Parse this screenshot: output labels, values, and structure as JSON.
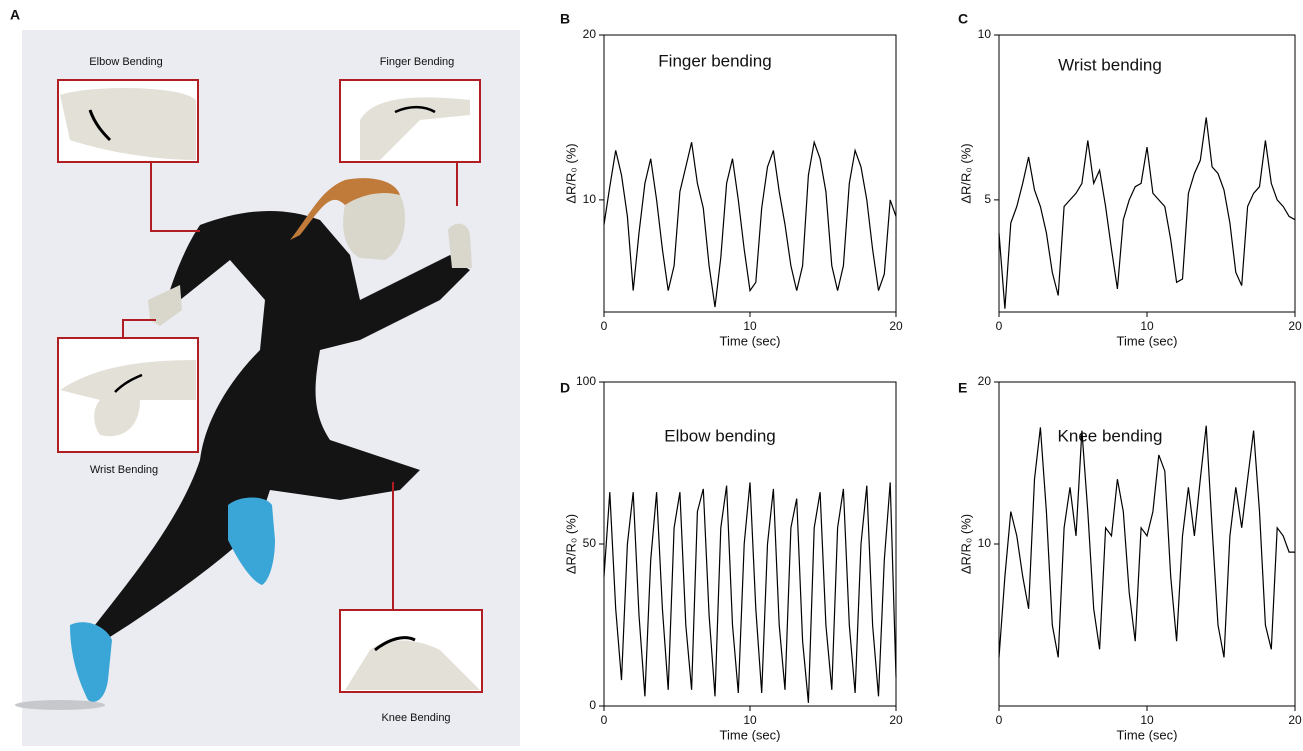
{
  "panel_a": {
    "label": "A",
    "callouts": [
      "Elbow Bending",
      "Finger Bending",
      "Wrist Bending",
      "Knee Bending"
    ]
  },
  "chart_data": [
    {
      "type": "line",
      "label": "B",
      "title": "Finger bending",
      "xlabel": "Time (sec)",
      "ylabel": "ΔR/R₀ (%)",
      "color": "#000000",
      "x": [
        0,
        0.4,
        0.8,
        1.2,
        1.6,
        2.0,
        2.4,
        2.8,
        3.2,
        3.6,
        4.0,
        4.4,
        4.8,
        5.2,
        5.6,
        6.0,
        6.4,
        6.8,
        7.2,
        7.6,
        8.0,
        8.4,
        8.8,
        9.2,
        9.6,
        10.0,
        10.4,
        10.8,
        11.2,
        11.6,
        12.0,
        12.4,
        12.8,
        13.2,
        13.6,
        14.0,
        14.4,
        14.8,
        15.2,
        15.6,
        16.0,
        16.4,
        16.8,
        17.2,
        17.6,
        18.0,
        18.4,
        18.8,
        19.2,
        19.6,
        20.0
      ],
      "values": [
        8.5,
        10.8,
        13,
        11.5,
        9,
        4.5,
        8,
        11,
        12.5,
        10,
        7,
        4.5,
        6,
        10.5,
        12,
        13.5,
        11,
        9.5,
        6,
        3.5,
        6.5,
        11,
        12.5,
        10,
        7,
        4.5,
        5,
        9.5,
        12,
        13,
        10.5,
        8.5,
        6,
        4.5,
        6,
        11.5,
        13.5,
        12.5,
        10.5,
        6,
        4.5,
        6,
        11,
        13,
        12,
        10,
        7,
        4.5,
        5.5,
        10,
        9
      ],
      "xlim": [
        0,
        20
      ],
      "xticks": [
        0,
        10,
        20
      ],
      "ylim": [
        3.2,
        20
      ],
      "yticks": [
        10,
        20
      ]
    },
    {
      "type": "line",
      "label": "C",
      "title": "Wrist bending",
      "xlabel": "Time (sec)",
      "ylabel": "ΔR/R₀ (%)",
      "color": "#000000",
      "x": [
        0,
        0.4,
        0.8,
        1.2,
        1.6,
        2.0,
        2.4,
        2.8,
        3.2,
        3.6,
        4.0,
        4.4,
        4.8,
        5.2,
        5.6,
        6.0,
        6.4,
        6.8,
        7.2,
        7.6,
        8.0,
        8.4,
        8.8,
        9.2,
        9.6,
        10.0,
        10.4,
        10.8,
        11.2,
        11.6,
        12.0,
        12.4,
        12.8,
        13.2,
        13.6,
        14.0,
        14.4,
        14.8,
        15.2,
        15.6,
        16.0,
        16.4,
        16.8,
        17.2,
        17.6,
        18.0,
        18.4,
        18.8,
        19.2,
        19.6,
        20.0
      ],
      "values": [
        4,
        1.7,
        4.3,
        4.8,
        5.5,
        6.3,
        5.3,
        4.8,
        4,
        2.8,
        2.1,
        4.8,
        5,
        5.2,
        5.5,
        6.8,
        5.5,
        5.9,
        4.8,
        3.5,
        2.3,
        4.4,
        5,
        5.4,
        5.5,
        6.6,
        5.2,
        5,
        4.8,
        3.8,
        2.5,
        2.6,
        5.2,
        5.8,
        6.2,
        7.5,
        6,
        5.8,
        5.3,
        4.3,
        2.8,
        2.4,
        4.8,
        5.2,
        5.4,
        6.8,
        5.5,
        5,
        4.8,
        4.5,
        4.4
      ],
      "xlim": [
        0,
        20
      ],
      "xticks": [
        0,
        10,
        20
      ],
      "ylim": [
        1.6,
        10
      ],
      "yticks": [
        5,
        10
      ]
    },
    {
      "type": "line",
      "label": "D",
      "title": "Elbow bending",
      "xlabel": "Time (sec)",
      "ylabel": "ΔR/R₀ (%)",
      "color": "#000000",
      "x": [
        0,
        0.4,
        0.8,
        1.2,
        1.6,
        2.0,
        2.4,
        2.8,
        3.2,
        3.6,
        4.0,
        4.4,
        4.8,
        5.2,
        5.6,
        6.0,
        6.4,
        6.8,
        7.2,
        7.6,
        8.0,
        8.4,
        8.8,
        9.2,
        9.6,
        10.0,
        10.4,
        10.8,
        11.2,
        11.6,
        12.0,
        12.4,
        12.8,
        13.2,
        13.6,
        14.0,
        14.4,
        14.8,
        15.2,
        15.6,
        16.0,
        16.4,
        16.8,
        17.2,
        17.6,
        18.0,
        18.4,
        18.8,
        19.2,
        19.6,
        20.0
      ],
      "values": [
        40,
        66,
        30,
        8,
        50,
        66,
        28,
        3,
        45,
        66,
        30,
        5,
        55,
        66,
        25,
        5,
        60,
        67,
        28,
        3,
        55,
        68,
        25,
        4,
        50,
        69,
        30,
        4,
        50,
        67,
        25,
        5,
        55,
        64,
        20,
        1,
        55,
        66,
        25,
        5,
        55,
        67,
        25,
        4,
        50,
        68,
        25,
        3,
        45,
        69,
        9
      ],
      "xlim": [
        0,
        20
      ],
      "xticks": [
        0,
        10,
        20
      ],
      "ylim": [
        0,
        100
      ],
      "yticks": [
        0,
        50,
        100
      ]
    },
    {
      "type": "line",
      "label": "E",
      "title": "Knee bending",
      "xlabel": "Time (sec)",
      "ylabel": "ΔR/R₀ (%)",
      "color": "#000000",
      "x": [
        0,
        0.4,
        0.8,
        1.2,
        1.6,
        2.0,
        2.4,
        2.8,
        3.2,
        3.6,
        4.0,
        4.4,
        4.8,
        5.2,
        5.6,
        6.0,
        6.4,
        6.8,
        7.2,
        7.6,
        8.0,
        8.4,
        8.8,
        9.2,
        9.6,
        10.0,
        10.4,
        10.8,
        11.2,
        11.6,
        12.0,
        12.4,
        12.8,
        13.2,
        13.6,
        14.0,
        14.4,
        14.8,
        15.2,
        15.6,
        16.0,
        16.4,
        16.8,
        17.2,
        17.6,
        18.0,
        18.4,
        18.8,
        19.2,
        19.6,
        20.0
      ],
      "values": [
        3,
        8,
        12,
        10.5,
        8,
        6,
        14,
        17.2,
        12,
        5,
        3,
        11,
        13.5,
        10.5,
        17,
        12,
        6,
        3.5,
        11,
        10.5,
        14,
        12,
        7,
        4,
        11,
        10.5,
        12,
        15.5,
        14.5,
        8,
        4,
        10.5,
        13.5,
        10.5,
        14,
        17.3,
        11,
        5,
        3,
        10.5,
        13.5,
        11,
        14,
        17,
        12,
        5,
        3.5,
        11,
        10.5,
        9.5,
        9.5
      ],
      "xlim": [
        0,
        20
      ],
      "xticks": [
        0,
        10,
        20
      ],
      "ylim": [
        0,
        20
      ],
      "yticks": [
        10,
        20
      ]
    }
  ]
}
